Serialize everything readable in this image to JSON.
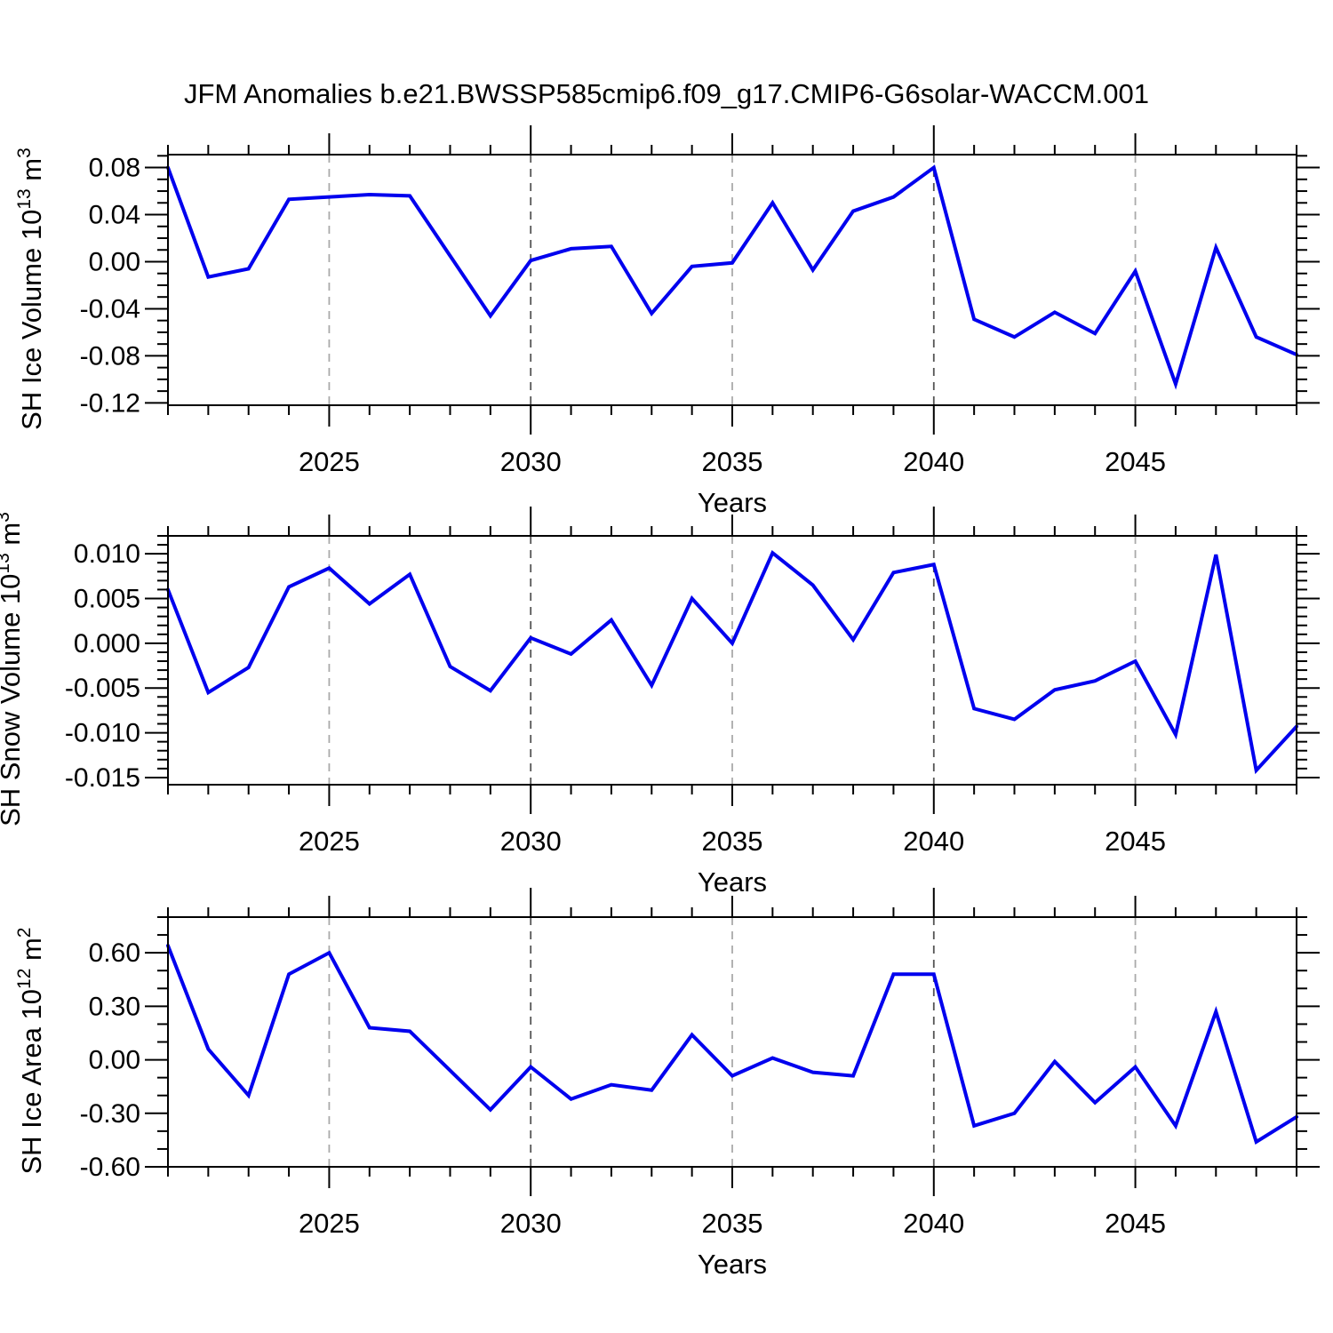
{
  "title": "JFM Anomalies b.e21.BWSSP585cmip6.f09_g17.CMIP6-G6solar-WACCM.001",
  "chart_data": [
    {
      "type": "line",
      "name": "sh-ice-volume",
      "ylabel_parts": [
        {
          "t": "SH Ice Volume 10"
        },
        {
          "t": "13",
          "sup": true
        },
        {
          "t": " m"
        },
        {
          "t": "3",
          "sup": true
        }
      ],
      "ylabel_text": "SH Ice Volume 10^13 m^3",
      "xlabel": "Years",
      "x": [
        2021,
        2022,
        2023,
        2024,
        2025,
        2026,
        2027,
        2028,
        2029,
        2030,
        2031,
        2032,
        2033,
        2034,
        2035,
        2036,
        2037,
        2038,
        2039,
        2040,
        2041,
        2042,
        2043,
        2044,
        2045,
        2046,
        2047,
        2048,
        2049
      ],
      "values": [
        0.08,
        -0.013,
        -0.006,
        0.053,
        0.055,
        0.057,
        0.056,
        0.005,
        -0.046,
        0.001,
        0.011,
        0.013,
        -0.044,
        -0.004,
        -0.001,
        0.05,
        -0.007,
        0.043,
        0.055,
        0.08,
        -0.049,
        -0.064,
        -0.043,
        -0.061,
        -0.008,
        -0.104,
        0.012,
        -0.064,
        -0.079
      ],
      "ylim": [
        -0.122,
        0.091
      ],
      "ytick_values": [
        0.08,
        0.04,
        0.0,
        -0.04,
        -0.08,
        -0.12
      ],
      "ytick_labels": [
        "0.08",
        "0.04",
        "0.00",
        "-0.04",
        "-0.08",
        "-0.12"
      ],
      "y_minor_step": 0.01,
      "xlim": [
        2021,
        2049
      ],
      "xtick_values": [
        2025,
        2030,
        2035,
        2040,
        2045
      ],
      "xtick_labels": [
        "2025",
        "2030",
        "2035",
        "2040",
        "2045"
      ],
      "x_minor_step": 1,
      "grid_x_values": [
        2025,
        2030,
        2035,
        2040,
        2045
      ],
      "grid_emphasis_values": [
        2030,
        2040
      ],
      "line_color": "#0000ee",
      "grid_color": "#aaaaaa",
      "grid_emphasis_color": "#555555",
      "legend": "none",
      "grid": "vertical-dashed"
    },
    {
      "type": "line",
      "name": "sh-snow-volume",
      "ylabel_parts": [
        {
          "t": "SH Snow Volume 10"
        },
        {
          "t": "13",
          "sup": true
        },
        {
          "t": " m"
        },
        {
          "t": "3",
          "sup": true
        }
      ],
      "ylabel_text": "SH Snow Volume 10^13 m^3",
      "xlabel": "Years",
      "x": [
        2021,
        2022,
        2023,
        2024,
        2025,
        2026,
        2027,
        2028,
        2029,
        2030,
        2031,
        2032,
        2033,
        2034,
        2035,
        2036,
        2037,
        2038,
        2039,
        2040,
        2041,
        2042,
        2043,
        2044,
        2045,
        2046,
        2047,
        2048,
        2049
      ],
      "values": [
        0.006,
        -0.0055,
        -0.0027,
        0.0063,
        0.0084,
        0.0044,
        0.0077,
        -0.0026,
        -0.0053,
        0.0006,
        -0.0012,
        0.0026,
        -0.0047,
        0.005,
        0.0,
        0.0101,
        0.0065,
        0.0004,
        0.0079,
        0.0088,
        -0.0073,
        -0.0085,
        -0.0052,
        -0.0042,
        -0.002,
        -0.0102,
        0.0099,
        -0.0142,
        -0.0093
      ],
      "ylim": [
        -0.0158,
        0.012
      ],
      "ytick_values": [
        0.01,
        0.005,
        0.0,
        -0.005,
        -0.01,
        -0.015
      ],
      "ytick_labels": [
        "0.010",
        "0.005",
        "0.000",
        "-0.005",
        "-0.010",
        "-0.015"
      ],
      "y_minor_step": 0.001,
      "xlim": [
        2021,
        2049
      ],
      "xtick_values": [
        2025,
        2030,
        2035,
        2040,
        2045
      ],
      "xtick_labels": [
        "2025",
        "2030",
        "2035",
        "2040",
        "2045"
      ],
      "x_minor_step": 1,
      "grid_x_values": [
        2025,
        2030,
        2035,
        2040,
        2045
      ],
      "grid_emphasis_values": [
        2030,
        2040
      ],
      "line_color": "#0000ee",
      "grid_color": "#aaaaaa",
      "grid_emphasis_color": "#555555",
      "legend": "none",
      "grid": "vertical-dashed"
    },
    {
      "type": "line",
      "name": "sh-ice-area",
      "ylabel_parts": [
        {
          "t": "SH Ice Area 10"
        },
        {
          "t": "12",
          "sup": true
        },
        {
          "t": " m"
        },
        {
          "t": "2",
          "sup": true
        }
      ],
      "ylabel_text": "SH Ice Area 10^12 m^2",
      "xlabel": "Years",
      "x": [
        2021,
        2022,
        2023,
        2024,
        2025,
        2026,
        2027,
        2028,
        2029,
        2030,
        2031,
        2032,
        2033,
        2034,
        2035,
        2036,
        2037,
        2038,
        2039,
        2040,
        2041,
        2042,
        2043,
        2044,
        2045,
        2046,
        2047,
        2048,
        2049
      ],
      "values": [
        0.64,
        0.06,
        -0.2,
        0.48,
        0.6,
        0.18,
        0.16,
        -0.06,
        -0.28,
        -0.04,
        -0.22,
        -0.14,
        -0.17,
        0.14,
        -0.09,
        0.01,
        -0.07,
        -0.09,
        0.48,
        0.48,
        -0.37,
        -0.3,
        -0.01,
        -0.24,
        -0.04,
        -0.37,
        0.27,
        -0.46,
        -0.32
      ],
      "ylim": [
        -0.6,
        0.8
      ],
      "ytick_values": [
        0.6,
        0.3,
        0.0,
        -0.3,
        -0.6
      ],
      "ytick_labels": [
        "0.60",
        "0.30",
        "0.00",
        "-0.30",
        "-0.60"
      ],
      "y_minor_step": 0.1,
      "xlim": [
        2021,
        2049
      ],
      "xtick_values": [
        2025,
        2030,
        2035,
        2040,
        2045
      ],
      "xtick_labels": [
        "2025",
        "2030",
        "2035",
        "2040",
        "2045"
      ],
      "x_minor_step": 1,
      "grid_x_values": [
        2025,
        2030,
        2035,
        2040,
        2045
      ],
      "grid_emphasis_values": [
        2030,
        2040
      ],
      "line_color": "#0000ee",
      "grid_color": "#aaaaaa",
      "grid_emphasis_color": "#555555",
      "legend": "none",
      "grid": "vertical-dashed"
    }
  ]
}
